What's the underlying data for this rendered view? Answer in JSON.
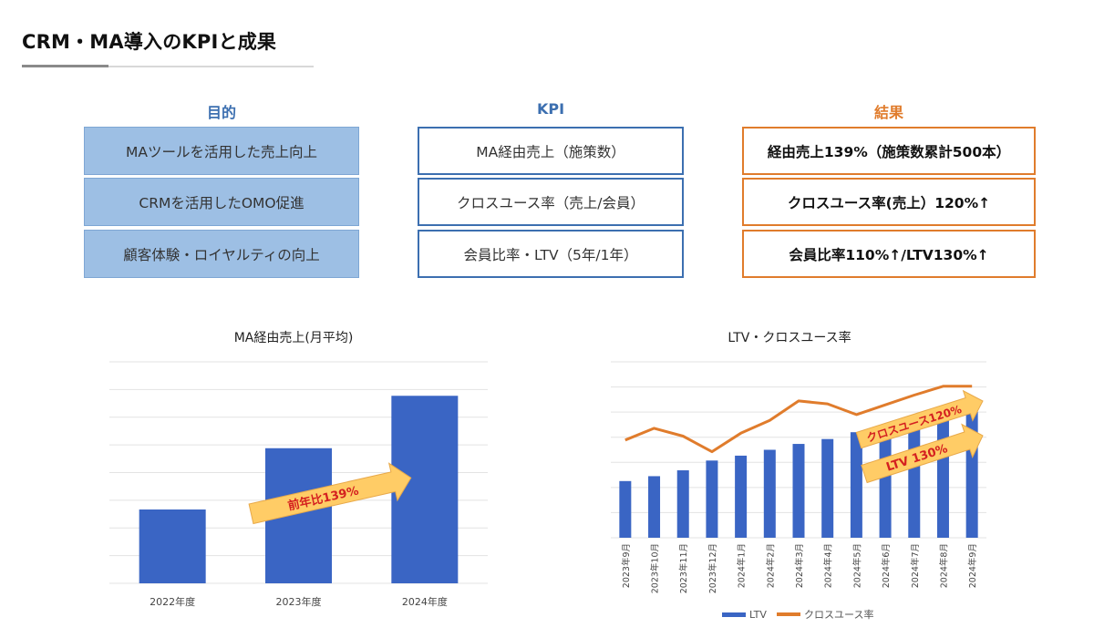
{
  "page": {
    "title": "CRM・MA導入のKPIと成果"
  },
  "table": {
    "headers": {
      "purpose": "目的",
      "kpi": "KPI",
      "result": "結果"
    },
    "rows": [
      {
        "purpose": "MAツールを活用した売上向上",
        "kpi": "MA経由売上（施策数）",
        "result": "経由売上139%（施策数累計500本）"
      },
      {
        "purpose": "CRMを活用したOMO促進",
        "kpi": "クロスユース率（売上/会員）",
        "result": "クロスユース率(売上）120%↑"
      },
      {
        "purpose": "顧客体験・ロイヤルティの向上",
        "kpi": "会員比率・LTV（5年/1年）",
        "result": "会員比率110%↑/LTV130%↑"
      }
    ],
    "colors": {
      "purpose_fill": "#9dbfe4",
      "kpi_border": "#3c6fb0",
      "result_border": "#e07c2c"
    }
  },
  "chart_data": [
    {
      "type": "bar",
      "title": "MA経由売上(月平均)",
      "categories": [
        "2022年度",
        "2023年度",
        "2024年度"
      ],
      "values": [
        100,
        183,
        254
      ],
      "ylim": [
        0,
        300
      ],
      "grid": true,
      "color": "#3a65c4",
      "annotation": {
        "text": "前年比139%",
        "color": "#ffcc66",
        "text_color": "#d42020"
      }
    },
    {
      "type": "bar+line",
      "title": "LTV・クロスユース率",
      "categories": [
        "2023年9月",
        "2023年10月",
        "2023年11月",
        "2023年12月",
        "2024年1月",
        "2024年2月",
        "2024年3月",
        "2024年4月",
        "2024年5月",
        "2024年6月",
        "2024年7月",
        "2024年8月",
        "2024年9月"
      ],
      "series": [
        {
          "name": "LTV",
          "type": "bar",
          "color": "#3a65c4",
          "values": [
            58,
            63,
            69,
            79,
            84,
            90,
            96,
            101,
            108,
            113,
            117,
            123,
            129
          ]
        },
        {
          "name": "クロスユース率",
          "type": "line",
          "color": "#e07c2c",
          "values": [
            100,
            112,
            104,
            88,
            107,
            120,
            140,
            137,
            126,
            136,
            146,
            155,
            155
          ]
        }
      ],
      "ylim": [
        0,
        180
      ],
      "grid": true,
      "legend": "bottom",
      "annotations": [
        {
          "text": "クロスユース120%",
          "color": "#ffcc66",
          "text_color": "#d42020"
        },
        {
          "text": "LTV 130%",
          "color": "#ffcc66",
          "text_color": "#d42020"
        }
      ]
    }
  ]
}
